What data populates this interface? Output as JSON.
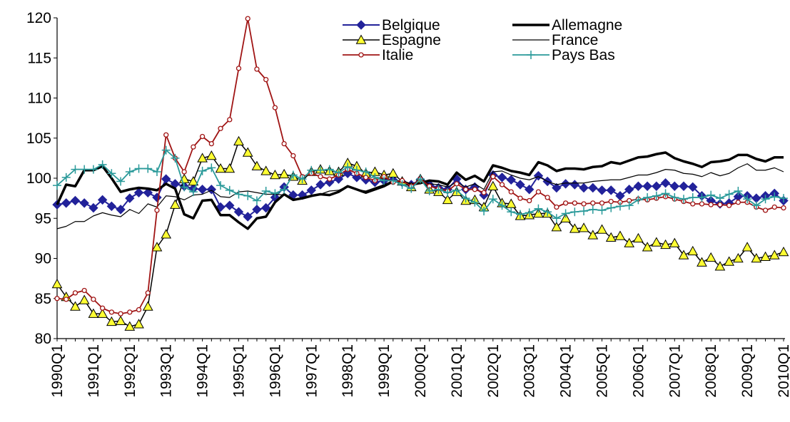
{
  "chart_data": {
    "type": "line",
    "categories": [
      "1990Q1",
      null,
      null,
      null,
      "1991Q1",
      null,
      null,
      null,
      "1992Q1",
      null,
      null,
      null,
      "1993Q1",
      null,
      null,
      null,
      "1994Q1",
      null,
      null,
      null,
      "1995Q1",
      null,
      null,
      null,
      "1996Q1",
      null,
      null,
      null,
      "1997Q1",
      null,
      null,
      null,
      "1998Q1",
      null,
      null,
      null,
      "1999Q1",
      null,
      null,
      null,
      "2000Q1",
      null,
      null,
      null,
      "2001Q1",
      null,
      null,
      null,
      "2002Q1",
      null,
      null,
      null,
      "2003Q1",
      null,
      null,
      null,
      "2004Q1",
      null,
      null,
      null,
      "2005Q1",
      null,
      null,
      null,
      "2006Q1",
      null,
      null,
      null,
      "2007Q1",
      null,
      null,
      null,
      "2008Q1",
      null,
      null,
      null,
      "2009Q1",
      null,
      null,
      null,
      "2010Q1"
    ],
    "ylim": [
      80,
      120
    ],
    "yticks": [
      80,
      85,
      90,
      95,
      100,
      105,
      110,
      115,
      120
    ],
    "grid": false,
    "legend": "top",
    "series": [
      {
        "name": "Belgique",
        "color": "#22229a",
        "marker": "diamond",
        "line_width": 2,
        "values": [
          96.7,
          96.9,
          97.2,
          96.9,
          96.3,
          97.3,
          96.5,
          96.1,
          97.5,
          98.2,
          98.2,
          97.6,
          99.9,
          99.3,
          99.0,
          98.7,
          98.6,
          98.6,
          96.4,
          96.6,
          95.8,
          95.2,
          96.1,
          96.3,
          97.6,
          98.9,
          97.9,
          97.9,
          98.5,
          99.2,
          99.5,
          99.9,
          100.6,
          100.1,
          99.8,
          99.5,
          99.7,
          99.8,
          99.5,
          99.2,
          99.8,
          99.2,
          98.8,
          98.6,
          99.9,
          98.6,
          98.9,
          97.9,
          100.4,
          100.1,
          99.8,
          99.2,
          98.6,
          100.3,
          99.6,
          98.8,
          99.3,
          99.2,
          98.8,
          98.8,
          98.5,
          98.5,
          97.8,
          98.6,
          99.0,
          99.0,
          99.0,
          99.4,
          99.0,
          99.0,
          98.9,
          97.8,
          97.2,
          96.8,
          96.9,
          97.7,
          97.8,
          97.5,
          97.8,
          98.1,
          97.2
        ]
      },
      {
        "name": "Allemagne",
        "color": "#000000",
        "marker": "none",
        "line_width": 3.5,
        "values": [
          96.7,
          99.2,
          99.0,
          101.0,
          101.0,
          101.5,
          100.0,
          98.3,
          98.6,
          98.8,
          98.7,
          98.5,
          99.3,
          98.7,
          95.5,
          95.0,
          97.2,
          97.3,
          95.4,
          95.4,
          94.5,
          93.7,
          95.0,
          95.2,
          97.0,
          98.0,
          97.3,
          97.5,
          97.8,
          98.0,
          97.9,
          98.3,
          99.0,
          98.6,
          98.2,
          98.6,
          99.0,
          99.6,
          99.6,
          99.2,
          99.4,
          99.7,
          99.6,
          99.2,
          100.7,
          99.8,
          100.3,
          99.6,
          101.6,
          101.3,
          100.9,
          100.7,
          100.4,
          102.0,
          101.6,
          100.9,
          101.2,
          101.2,
          101.1,
          101.4,
          101.5,
          102.0,
          101.8,
          102.2,
          102.6,
          102.7,
          103.0,
          103.2,
          102.5,
          102.1,
          101.8,
          101.4,
          102.0,
          102.1,
          102.3,
          102.9,
          102.9,
          102.4,
          102.1,
          102.6,
          102.6
        ]
      },
      {
        "name": "Espagne",
        "color": "#000000",
        "marker": "triangle",
        "marker_fill": "#ffff33",
        "line_width": 1.5,
        "values": [
          86.8,
          85.2,
          84.0,
          84.8,
          83.1,
          83.1,
          82.1,
          82.2,
          81.5,
          81.8,
          84.0,
          91.4,
          93.0,
          96.7,
          99.9,
          99.6,
          102.5,
          102.8,
          101.2,
          101.2,
          104.6,
          103.2,
          101.5,
          100.9,
          100.4,
          100.5,
          100.2,
          99.7,
          100.8,
          101.1,
          100.9,
          100.8,
          101.9,
          101.5,
          100.6,
          100.8,
          100.4,
          100.6,
          99.6,
          98.9,
          99.9,
          98.6,
          98.3,
          97.3,
          98.3,
          97.2,
          97.3,
          96.4,
          99.0,
          96.9,
          96.8,
          95.3,
          95.4,
          95.6,
          95.6,
          93.9,
          95.0,
          93.7,
          93.8,
          92.9,
          93.6,
          92.6,
          92.8,
          91.9,
          92.5,
          91.4,
          92.0,
          91.7,
          91.9,
          90.4,
          90.9,
          89.5,
          90.1,
          89.0,
          89.6,
          90.0,
          91.4,
          90.0,
          90.2,
          90.4,
          90.8
        ]
      },
      {
        "name": "France",
        "color": "#000000",
        "marker": "none",
        "line_width": 1.2,
        "values": [
          93.7,
          94.0,
          94.6,
          94.6,
          95.3,
          95.7,
          95.4,
          95.2,
          96.1,
          95.6,
          96.8,
          96.4,
          97.8,
          97.7,
          97.3,
          97.9,
          98.0,
          98.5,
          97.7,
          97.6,
          98.3,
          98.4,
          98.2,
          98.0,
          98.0,
          97.9,
          97.4,
          97.4,
          97.7,
          98.0,
          98.4,
          98.5,
          99.0,
          98.6,
          98.4,
          98.8,
          99.2,
          99.7,
          99.5,
          99.2,
          99.5,
          99.3,
          99.2,
          98.9,
          99.5,
          98.9,
          99.3,
          98.6,
          100.8,
          100.9,
          100.4,
          100.0,
          99.8,
          100.2,
          99.6,
          99.2,
          99.4,
          99.4,
          99.4,
          99.6,
          99.7,
          99.8,
          99.8,
          100.1,
          100.4,
          100.4,
          100.7,
          101.1,
          101.0,
          100.6,
          100.5,
          100.2,
          100.7,
          100.3,
          100.6,
          101.3,
          101.8,
          101.0,
          101.0,
          101.3,
          100.8
        ]
      },
      {
        "name": "Italie",
        "color": "#a01414",
        "marker": "circle",
        "line_width": 1.8,
        "values": [
          85.0,
          84.9,
          85.7,
          86.0,
          84.9,
          83.8,
          83.3,
          83.1,
          83.3,
          83.6,
          85.7,
          96.0,
          105.4,
          102.5,
          100.8,
          103.9,
          105.2,
          104.3,
          106.2,
          107.3,
          113.7,
          119.9,
          113.6,
          112.3,
          108.8,
          104.3,
          102.8,
          100.2,
          100.6,
          100.2,
          99.9,
          100.4,
          101.1,
          100.6,
          100.1,
          99.7,
          100.2,
          99.5,
          99.7,
          99.0,
          99.9,
          99.0,
          98.7,
          98.4,
          99.3,
          98.6,
          98.6,
          98.2,
          100.2,
          99.2,
          98.3,
          97.5,
          97.2,
          98.3,
          97.6,
          96.4,
          96.9,
          96.9,
          96.8,
          96.9,
          96.9,
          97.1,
          97.0,
          97.2,
          97.4,
          97.3,
          97.5,
          97.7,
          97.4,
          97.1,
          96.8,
          96.8,
          96.7,
          96.7,
          96.6,
          97.0,
          97.0,
          96.4,
          96.0,
          96.4,
          96.3
        ]
      },
      {
        "name": "Pays Bas",
        "color": "#2a9a9a",
        "marker": "plus",
        "line_width": 1.8,
        "values": [
          99.1,
          100.1,
          101.1,
          101.1,
          101.1,
          101.7,
          100.6,
          99.6,
          100.8,
          101.2,
          101.2,
          100.8,
          103.5,
          102.5,
          98.9,
          98.3,
          100.9,
          101.3,
          99.1,
          98.5,
          98.0,
          97.8,
          97.2,
          98.4,
          98.1,
          98.6,
          100.4,
          99.9,
          101.0,
          101.0,
          101.1,
          100.7,
          101.4,
          101.0,
          100.8,
          100.1,
          99.7,
          99.7,
          99.2,
          98.7,
          99.9,
          98.4,
          98.6,
          98.2,
          98.5,
          97.5,
          97.0,
          95.9,
          97.4,
          96.6,
          95.8,
          95.5,
          95.7,
          96.2,
          95.8,
          95.0,
          95.6,
          95.8,
          95.9,
          96.1,
          96.0,
          96.3,
          96.5,
          96.6,
          97.3,
          97.6,
          97.8,
          98.1,
          97.6,
          97.4,
          97.6,
          97.6,
          97.9,
          97.5,
          98.0,
          98.4,
          97.4,
          96.6,
          97.4,
          97.7,
          97.5
        ]
      }
    ]
  }
}
